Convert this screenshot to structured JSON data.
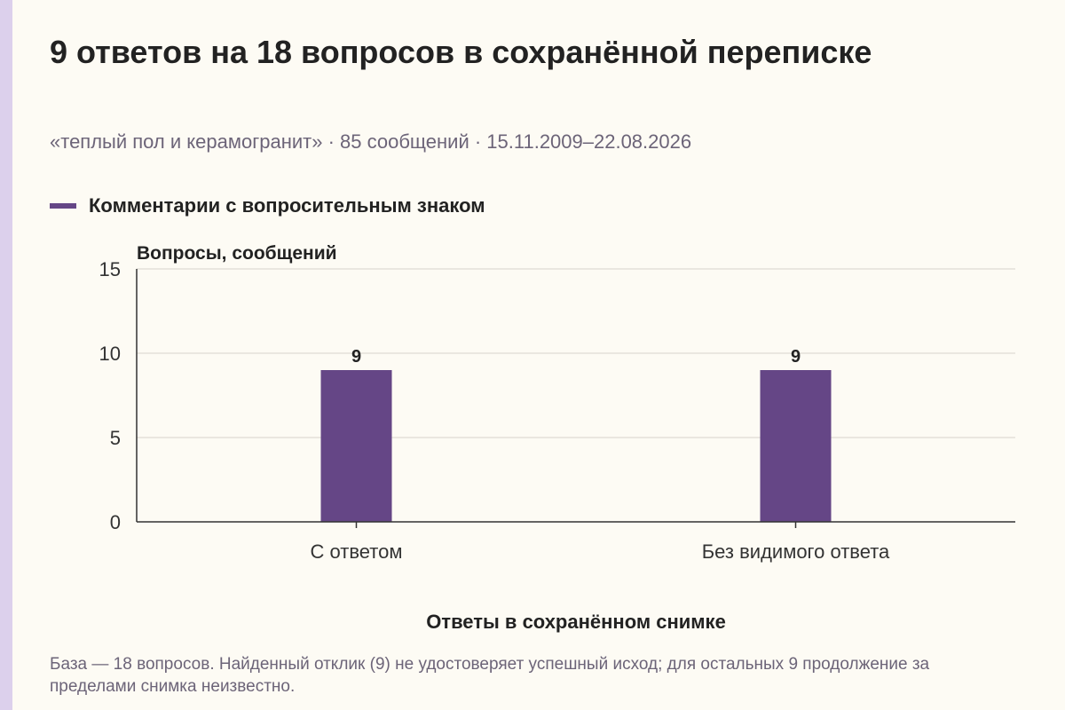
{
  "header": {
    "title": "9 ответов на 18 вопросов в сохранённой переписке",
    "subtitle": "«теплый пол и керамогранит» · 85 сообщений · 15.11.2009–22.08.2026"
  },
  "legend": {
    "label": "Комментарии с вопросительным знаком",
    "color": "#654686"
  },
  "chart_data": {
    "type": "bar",
    "categories": [
      "С ответом",
      "Без видимого ответа"
    ],
    "series": [
      {
        "name": "Комментарии с вопросительным знаком",
        "values": [
          9,
          9
        ]
      }
    ],
    "data_labels": [
      "9",
      "9"
    ],
    "ylabel": "Вопросы, сообщений",
    "xlabel": "Ответы в сохранённом снимке",
    "ylim": [
      0,
      15
    ],
    "yticks": [
      0,
      5,
      10,
      15
    ],
    "grid": true,
    "legend_position": "top-left",
    "bar_color": "#654686"
  },
  "footnote": "База — 18 вопросов. Найденный отклик (9) не удостоверяет успешный исход; для остальных 9 продолжение за пределами снимка неизвестно."
}
